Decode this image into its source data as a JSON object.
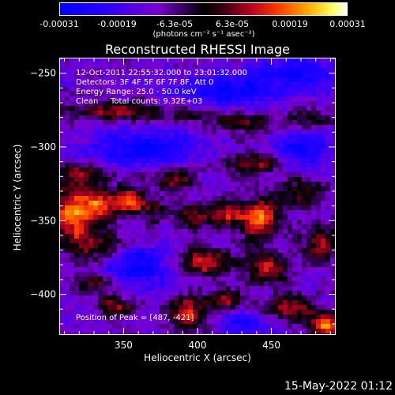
{
  "colorbar": {
    "ticks": [
      "-0.00031",
      "-0.00019",
      "-6.3e-05",
      "6.3e-05",
      "0.00019",
      "0.00031"
    ],
    "unit_label": "(photons cm⁻² s⁻¹ asec⁻²)",
    "range": [
      -0.00031,
      0.00031
    ]
  },
  "title": "Reconstructed RHESSI Image",
  "overlay": {
    "line1": "12-Oct-2011 22:55:32.000 to 23:01:32.000",
    "line2": "Detectors: 3F 4F 5F 6F 7F 8F, Att 0",
    "line3": "Energy Range: 25.0 - 50.0 keV",
    "line4_method": "Clean",
    "line4_counts": "Total counts: 9.32E+03",
    "peak": "Position of Peak = [487, -421]"
  },
  "footer": "15-May-2022 01:12",
  "chart_data": {
    "type": "heatmap",
    "title": "Reconstructed RHESSI Image",
    "xlabel": "Heliocentric X (arcsec)",
    "ylabel": "Heliocentric Y (arcsec)",
    "xlim": [
      307,
      493
    ],
    "ylim": [
      -427,
      -240
    ],
    "x_ticks": [
      350,
      400,
      450
    ],
    "y_ticks": [
      -250,
      -300,
      -350,
      -400
    ],
    "color_range": [
      -0.00031,
      0.00031
    ],
    "peak_position": [
      487,
      -421
    ],
    "blobs": [
      {
        "x": 315,
        "y": -345,
        "amp": 0.00029,
        "sx": 10,
        "sy": 12
      },
      {
        "x": 335,
        "y": -338,
        "amp": 0.00024,
        "sx": 10,
        "sy": 8
      },
      {
        "x": 355,
        "y": -337,
        "amp": 0.00026,
        "sx": 6,
        "sy": 6
      },
      {
        "x": 320,
        "y": -318,
        "amp": 0.00018,
        "sx": 12,
        "sy": 5
      },
      {
        "x": 330,
        "y": -366,
        "amp": 0.00016,
        "sx": 14,
        "sy": 7
      },
      {
        "x": 330,
        "y": -392,
        "amp": 0.00014,
        "sx": 12,
        "sy": 5
      },
      {
        "x": 345,
        "y": -276,
        "amp": 0.00018,
        "sx": 22,
        "sy": 5
      },
      {
        "x": 395,
        "y": -278,
        "amp": 0.00012,
        "sx": 12,
        "sy": 4
      },
      {
        "x": 430,
        "y": -284,
        "amp": 0.00016,
        "sx": 14,
        "sy": 5
      },
      {
        "x": 475,
        "y": -282,
        "amp": 0.00014,
        "sx": 12,
        "sy": 5
      },
      {
        "x": 385,
        "y": -322,
        "amp": 0.00017,
        "sx": 10,
        "sy": 5
      },
      {
        "x": 440,
        "y": -311,
        "amp": 0.00019,
        "sx": 14,
        "sy": 5
      },
      {
        "x": 470,
        "y": -331,
        "amp": 0.00017,
        "sx": 10,
        "sy": 7
      },
      {
        "x": 442,
        "y": -348,
        "amp": 0.0003,
        "sx": 9,
        "sy": 9
      },
      {
        "x": 420,
        "y": -346,
        "amp": 0.0002,
        "sx": 8,
        "sy": 6
      },
      {
        "x": 398,
        "y": -348,
        "amp": 0.00016,
        "sx": 8,
        "sy": 6
      },
      {
        "x": 372,
        "y": -342,
        "amp": 0.00012,
        "sx": 8,
        "sy": 6
      },
      {
        "x": 405,
        "y": -378,
        "amp": 0.00024,
        "sx": 12,
        "sy": 6
      },
      {
        "x": 447,
        "y": -382,
        "amp": 0.00022,
        "sx": 10,
        "sy": 7
      },
      {
        "x": 483,
        "y": -365,
        "amp": 0.0002,
        "sx": 8,
        "sy": 8
      },
      {
        "x": 345,
        "y": -408,
        "amp": 0.00018,
        "sx": 10,
        "sy": 5
      },
      {
        "x": 393,
        "y": -412,
        "amp": 0.00026,
        "sx": 9,
        "sy": 7
      },
      {
        "x": 420,
        "y": -404,
        "amp": 0.00018,
        "sx": 8,
        "sy": 5
      },
      {
        "x": 463,
        "y": -409,
        "amp": 0.00022,
        "sx": 10,
        "sy": 6
      },
      {
        "x": 487,
        "y": -421,
        "amp": 0.00031,
        "sx": 8,
        "sy": 6
      },
      {
        "x": 365,
        "y": -300,
        "amp": -0.0002,
        "sx": 25,
        "sy": 8
      },
      {
        "x": 420,
        "y": -262,
        "amp": -0.00018,
        "sx": 25,
        "sy": 8
      },
      {
        "x": 470,
        "y": -300,
        "amp": -0.00016,
        "sx": 14,
        "sy": 10
      },
      {
        "x": 360,
        "y": -382,
        "amp": -0.0002,
        "sx": 14,
        "sy": 10
      },
      {
        "x": 470,
        "y": -250,
        "amp": -0.00016,
        "sx": 20,
        "sy": 8
      },
      {
        "x": 430,
        "y": -420,
        "amp": -0.00014,
        "sx": 10,
        "sy": 6
      }
    ]
  }
}
